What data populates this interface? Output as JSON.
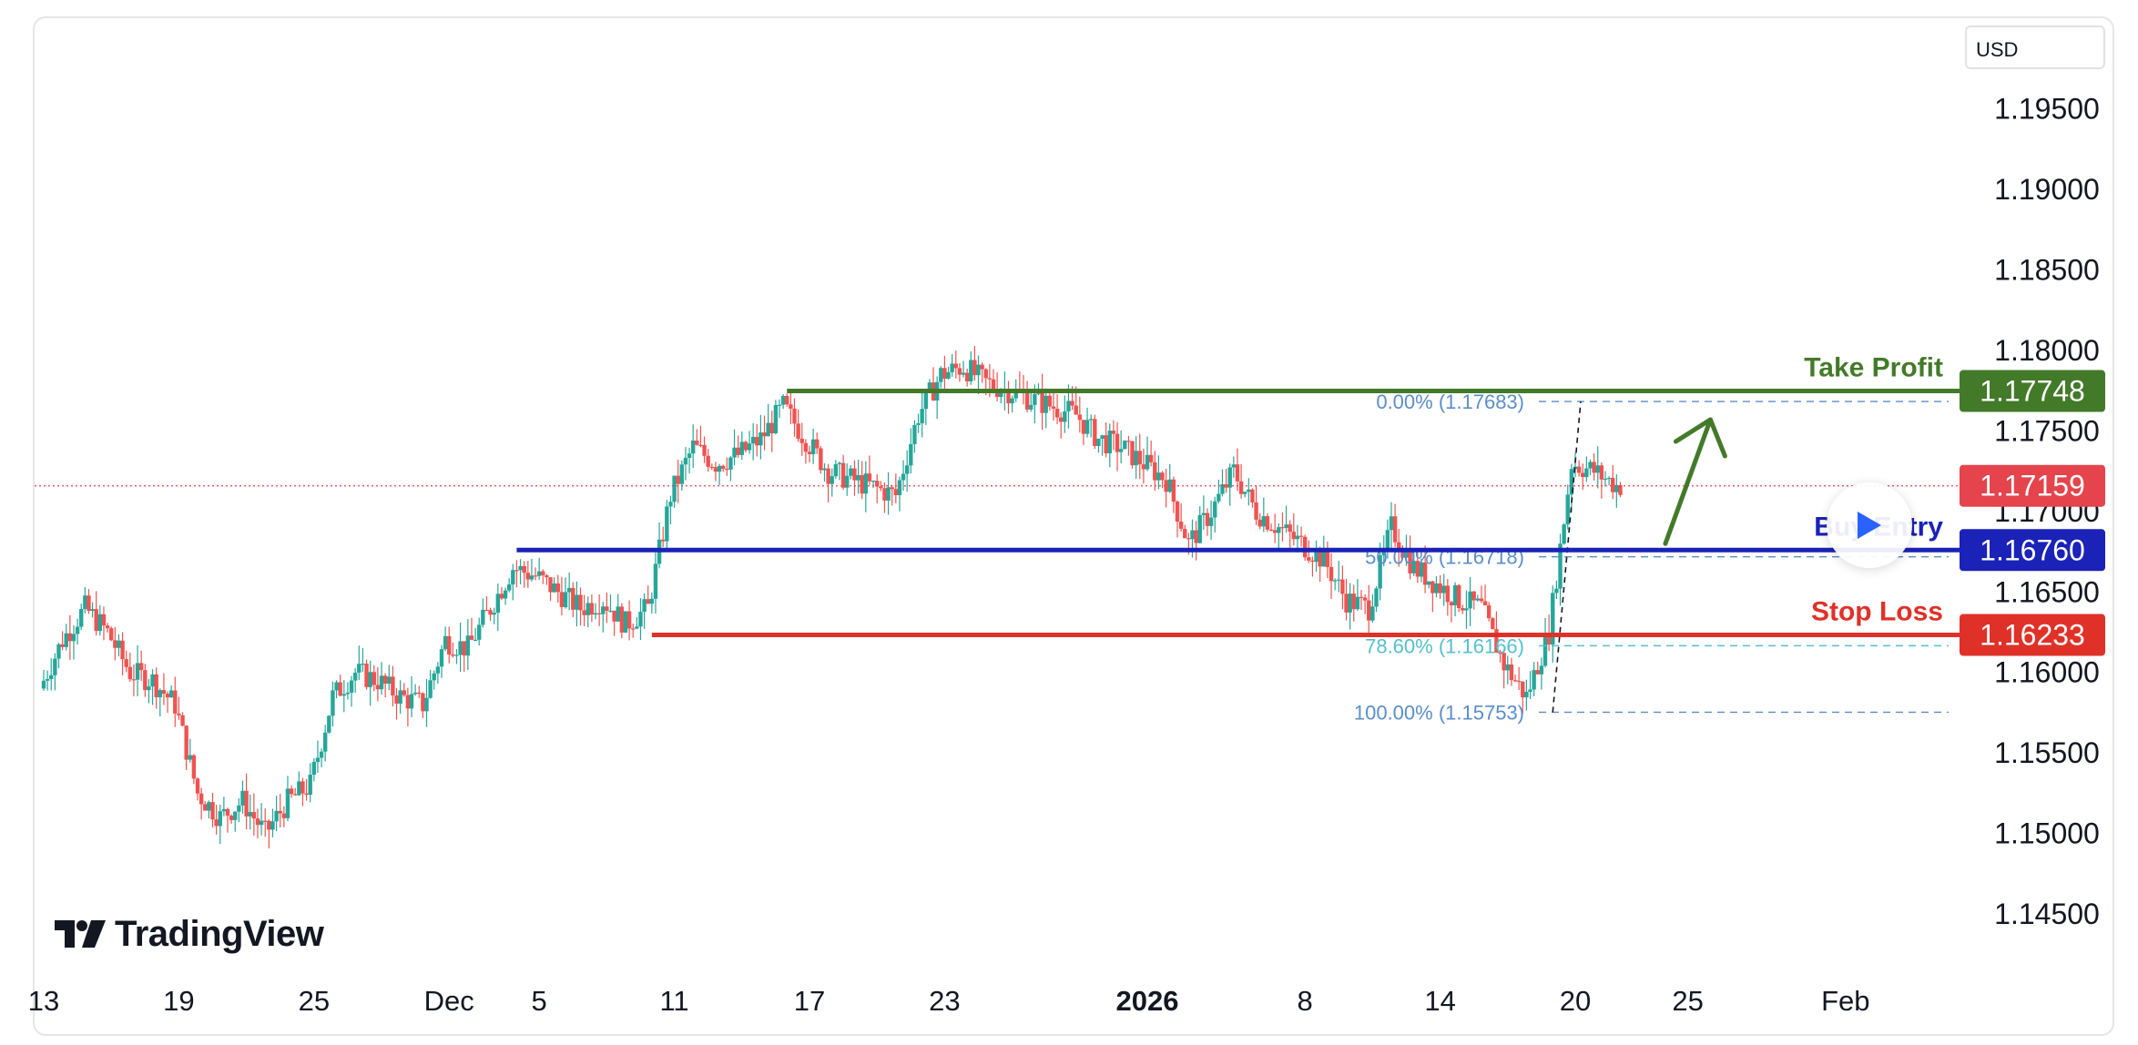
{
  "currency_label": "USD",
  "brand": "TradingView",
  "colors": {
    "up": "#26a69a",
    "down": "#ef5350",
    "take_profit": "#437a2a",
    "buy_entry": "#1a22b8",
    "stop_loss": "#e03128",
    "current_price": "#e5444d",
    "fib_blue": "#5b8ec9",
    "fib_cyan": "#55c0cc"
  },
  "chart_data": {
    "type": "candlestick",
    "title": "",
    "instrument_currency": "USD",
    "ylim": [
      1.1415,
      1.1995
    ],
    "y_ticks": [
      "1.14500",
      "1.15000",
      "1.15500",
      "1.16000",
      "1.16500",
      "1.17000",
      "1.17500",
      "1.18000",
      "1.18500",
      "1.19000",
      "1.19500"
    ],
    "y_tick_values": [
      1.145,
      1.15,
      1.155,
      1.16,
      1.165,
      1.17,
      1.175,
      1.18,
      1.185,
      1.19,
      1.195
    ],
    "x_ticks": [
      {
        "label": "13",
        "date": "2025-11-13"
      },
      {
        "label": "19",
        "date": "2025-11-19"
      },
      {
        "label": "25",
        "date": "2025-11-25"
      },
      {
        "label": "Dec",
        "date": "2025-12-01"
      },
      {
        "label": "5",
        "date": "2025-12-05"
      },
      {
        "label": "11",
        "date": "2025-12-11"
      },
      {
        "label": "17",
        "date": "2025-12-17"
      },
      {
        "label": "23",
        "date": "2025-12-23"
      },
      {
        "label": "2026",
        "date": "2026-01-01",
        "bold": true
      },
      {
        "label": "8",
        "date": "2026-01-08"
      },
      {
        "label": "14",
        "date": "2026-01-14"
      },
      {
        "label": "20",
        "date": "2026-01-20"
      },
      {
        "label": "25",
        "date": "2026-01-25"
      },
      {
        "label": "Feb",
        "date": "2026-02-01"
      }
    ],
    "grid": false,
    "price_path": [
      [
        "2025-11-13",
        1.159
      ],
      [
        "2025-11-14",
        1.162
      ],
      [
        "2025-11-15",
        1.164
      ],
      [
        "2025-11-16",
        1.1625
      ],
      [
        "2025-11-17",
        1.16
      ],
      [
        "2025-11-18",
        1.1595
      ],
      [
        "2025-11-19",
        1.158
      ],
      [
        "2025-11-20",
        1.1525
      ],
      [
        "2025-11-21",
        1.151
      ],
      [
        "2025-11-22",
        1.152
      ],
      [
        "2025-11-23",
        1.15
      ],
      [
        "2025-11-24",
        1.152
      ],
      [
        "2025-11-25",
        1.153
      ],
      [
        "2025-11-26",
        1.1585
      ],
      [
        "2025-11-27",
        1.16
      ],
      [
        "2025-11-28",
        1.1595
      ],
      [
        "2025-11-29",
        1.1585
      ],
      [
        "2025-11-30",
        1.158
      ],
      [
        "2025-12-01",
        1.162
      ],
      [
        "2025-12-02",
        1.1615
      ],
      [
        "2025-12-03",
        1.164
      ],
      [
        "2025-12-04",
        1.1665
      ],
      [
        "2025-12-05",
        1.166
      ],
      [
        "2025-12-06",
        1.165
      ],
      [
        "2025-12-07",
        1.164
      ],
      [
        "2025-12-08",
        1.1645
      ],
      [
        "2025-12-09",
        1.163
      ],
      [
        "2025-12-10",
        1.164
      ],
      [
        "2025-12-11",
        1.171
      ],
      [
        "2025-12-12",
        1.174
      ],
      [
        "2025-12-13",
        1.173
      ],
      [
        "2025-12-14",
        1.1735
      ],
      [
        "2025-12-15",
        1.1745
      ],
      [
        "2025-12-16",
        1.1765
      ],
      [
        "2025-12-17",
        1.1745
      ],
      [
        "2025-12-18",
        1.1725
      ],
      [
        "2025-12-19",
        1.172
      ],
      [
        "2025-12-20",
        1.1715
      ],
      [
        "2025-12-21",
        1.171
      ],
      [
        "2025-12-22",
        1.176
      ],
      [
        "2025-12-23",
        1.1785
      ],
      [
        "2025-12-24",
        1.179
      ],
      [
        "2025-12-25",
        1.178
      ],
      [
        "2025-12-26",
        1.1775
      ],
      [
        "2025-12-27",
        1.177
      ],
      [
        "2025-12-28",
        1.1765
      ],
      [
        "2025-12-29",
        1.176
      ],
      [
        "2025-12-30",
        1.1745
      ],
      [
        "2025-12-31",
        1.174
      ],
      [
        "2026-01-01",
        1.173
      ],
      [
        "2026-01-02",
        1.172
      ],
      [
        "2026-01-03",
        1.168
      ],
      [
        "2026-01-04",
        1.17
      ],
      [
        "2026-01-05",
        1.1725
      ],
      [
        "2026-01-06",
        1.17
      ],
      [
        "2026-01-07",
        1.169
      ],
      [
        "2026-01-08",
        1.168
      ],
      [
        "2026-01-09",
        1.167
      ],
      [
        "2026-01-10",
        1.1645
      ],
      [
        "2026-01-11",
        1.164
      ],
      [
        "2026-01-12",
        1.169
      ],
      [
        "2026-01-13",
        1.1665
      ],
      [
        "2026-01-14",
        1.1655
      ],
      [
        "2026-01-15",
        1.1645
      ],
      [
        "2026-01-16",
        1.164
      ],
      [
        "2026-01-17",
        1.1605
      ],
      [
        "2026-01-18",
        1.1585
      ],
      [
        "2026-01-19",
        1.1625
      ],
      [
        "2026-01-20",
        1.173
      ],
      [
        "2026-01-21",
        1.1725
      ],
      [
        "2026-01-22",
        1.1716
      ]
    ],
    "levels": [
      {
        "name": "take_profit",
        "label": "Take Profit",
        "value": 1.17748,
        "value_label": "1.17748",
        "from": "2025-12-16"
      },
      {
        "name": "buy_entry",
        "label": "Buy Entry",
        "value": 1.1676,
        "value_label": "1.16760",
        "from": "2025-12-04"
      },
      {
        "name": "stop_loss",
        "label": "Stop Loss",
        "value": 1.16233,
        "value_label": "1.16233",
        "from": "2025-12-10"
      }
    ],
    "current_price": {
      "value": 1.17159,
      "value_label": "1.17159"
    },
    "fibonacci": [
      {
        "label": "0.00% (1.17683)",
        "value": 1.17683,
        "color": "fib_blue"
      },
      {
        "label": "50.00% (1.16718)",
        "value": 1.16718,
        "color": "fib_blue"
      },
      {
        "label": "78.60% (1.16166)",
        "value": 1.16166,
        "color": "fib_cyan"
      },
      {
        "label": "100.00% (1.15753)",
        "value": 1.15753,
        "color": "fib_blue"
      }
    ],
    "fib_anchor": {
      "from_date": "2026-01-19",
      "from_price": 1.15753,
      "to_date": "2026-01-20",
      "to_price": 1.17683
    },
    "arrow": {
      "from_date": "2026-01-24",
      "from_price": 1.168,
      "to_date": "2026-01-26",
      "to_price": 1.1757,
      "direction": "up"
    }
  }
}
